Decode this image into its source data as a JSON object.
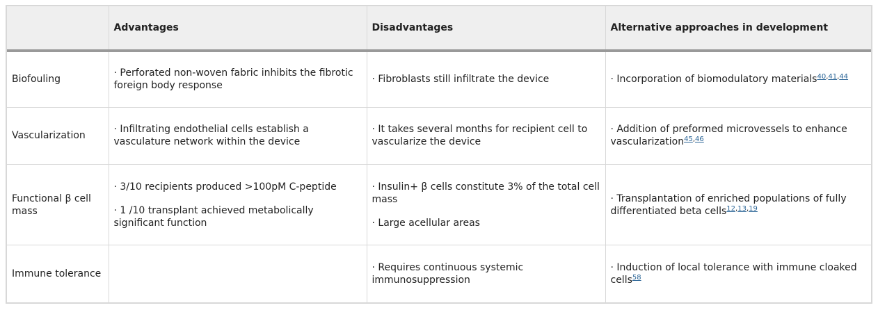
{
  "headers": [
    "",
    "Advantages",
    "Disadvantages",
    "Alternative approaches in development"
  ],
  "rows": [
    {
      "label": "Biofouling",
      "advantages": [
        "· Perforated non-woven fabric inhibits the fibrotic foreign body response"
      ],
      "disadvantages": [
        "· Fibroblasts still infiltrate the device"
      ],
      "alternative": {
        "text": "· Incorporation of biomodulatory materials",
        "refs": [
          "40",
          "41",
          "44"
        ]
      }
    },
    {
      "label": "Vascularization",
      "advantages": [
        "· Infiltrating endothelial cells establish a vasculature network within the device"
      ],
      "disadvantages": [
        "· It takes several months for recipient cell to vascularize the device"
      ],
      "alternative": {
        "text": "· Addition of preformed microvessels to enhance vascularization",
        "refs": [
          "45",
          "46"
        ]
      }
    },
    {
      "label": "Functional β cell mass",
      "advantages": [
        "· 3/10 recipients produced >100pM C-peptide",
        "· 1 /10 transplant achieved metabolically significant function"
      ],
      "disadvantages": [
        "· Insulin+ β cells constitute 3% of the total cell mass",
        "· Large acellular areas"
      ],
      "alternative": {
        "text": "· Transplantation of enriched populations of fully differentiated beta cells",
        "refs": [
          "12",
          "13",
          "19"
        ]
      }
    },
    {
      "label": "Immune tolerance",
      "advantages": [],
      "disadvantages": [
        "· Requires continuous systemic immunosuppression"
      ],
      "alternative": {
        "text": "· Induction of local tolerance with immune cloaked cells",
        "refs": [
          "58"
        ]
      }
    }
  ]
}
